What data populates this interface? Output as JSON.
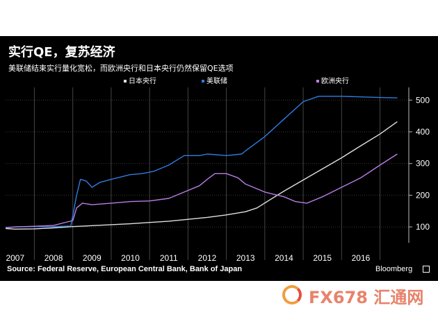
{
  "title": "实行QE，复苏经济",
  "subtitle": "美联储结束实行量化宽松，而欧洲央行和日本央行仍然保留QE选项",
  "source": "Source: Federal Reserve, European Central Bank, Bank of Japan",
  "brand": "Bloomberg",
  "watermark": "FX678 汇通网",
  "colors": {
    "background": "#000000",
    "boj": "#e0e0e0",
    "fed": "#2f7de0",
    "ecb": "#b97fe6"
  },
  "chart_data": {
    "type": "line",
    "x_ticks": [
      "2007",
      "2008",
      "2009",
      "2010",
      "2011",
      "2012",
      "2013",
      "2014",
      "2015",
      "2016"
    ],
    "y_ticks": [
      100,
      200,
      300,
      400,
      500
    ],
    "ylim": [
      50,
      540
    ],
    "xlim": [
      2006.75,
      2017.25
    ],
    "grid": true,
    "legend_position": "top",
    "series": [
      {
        "name": "日本央行",
        "color": "#e0e0e0",
        "points": [
          [
            2006.75,
            95
          ],
          [
            2007.0,
            93
          ],
          [
            2007.5,
            94
          ],
          [
            2008.0,
            97
          ],
          [
            2008.5,
            101
          ],
          [
            2009.0,
            104
          ],
          [
            2009.5,
            107
          ],
          [
            2010.0,
            110
          ],
          [
            2010.5,
            114
          ],
          [
            2011.0,
            118
          ],
          [
            2011.5,
            124
          ],
          [
            2012.0,
            130
          ],
          [
            2012.5,
            138
          ],
          [
            2013.0,
            148
          ],
          [
            2013.3,
            160
          ],
          [
            2013.6,
            183
          ],
          [
            2014.0,
            213
          ],
          [
            2014.5,
            248
          ],
          [
            2015.0,
            283
          ],
          [
            2015.5,
            318
          ],
          [
            2016.0,
            356
          ],
          [
            2016.5,
            393
          ],
          [
            2016.95,
            432
          ]
        ]
      },
      {
        "name": "美联储",
        "color": "#2f7de0",
        "points": [
          [
            2006.75,
            98
          ],
          [
            2007.0,
            100
          ],
          [
            2007.5,
            101
          ],
          [
            2008.0,
            101
          ],
          [
            2008.45,
            103
          ],
          [
            2008.6,
            200
          ],
          [
            2008.7,
            250
          ],
          [
            2008.85,
            245
          ],
          [
            2009.0,
            225
          ],
          [
            2009.2,
            240
          ],
          [
            2009.5,
            250
          ],
          [
            2010.0,
            265
          ],
          [
            2010.3,
            268
          ],
          [
            2010.6,
            275
          ],
          [
            2011.0,
            295
          ],
          [
            2011.4,
            325
          ],
          [
            2011.8,
            325
          ],
          [
            2012.0,
            330
          ],
          [
            2012.5,
            325
          ],
          [
            2012.9,
            330
          ],
          [
            2013.0,
            340
          ],
          [
            2013.5,
            385
          ],
          [
            2014.0,
            440
          ],
          [
            2014.5,
            495
          ],
          [
            2014.9,
            512
          ],
          [
            2015.5,
            512
          ],
          [
            2016.0,
            510
          ],
          [
            2016.5,
            508
          ],
          [
            2016.95,
            507
          ]
        ]
      },
      {
        "name": "欧洲央行",
        "color": "#b97fe6",
        "points": [
          [
            2006.75,
            97
          ],
          [
            2007.0,
            100
          ],
          [
            2007.5,
            102
          ],
          [
            2008.0,
            105
          ],
          [
            2008.5,
            120
          ],
          [
            2008.6,
            160
          ],
          [
            2008.75,
            175
          ],
          [
            2009.0,
            170
          ],
          [
            2009.5,
            175
          ],
          [
            2010.0,
            180
          ],
          [
            2010.5,
            182
          ],
          [
            2011.0,
            190
          ],
          [
            2011.4,
            210
          ],
          [
            2011.8,
            230
          ],
          [
            2012.0,
            250
          ],
          [
            2012.2,
            268
          ],
          [
            2012.5,
            268
          ],
          [
            2012.8,
            255
          ],
          [
            2013.0,
            235
          ],
          [
            2013.5,
            210
          ],
          [
            2014.0,
            195
          ],
          [
            2014.3,
            180
          ],
          [
            2014.6,
            175
          ],
          [
            2015.0,
            195
          ],
          [
            2015.5,
            225
          ],
          [
            2016.0,
            255
          ],
          [
            2016.5,
            295
          ],
          [
            2016.95,
            330
          ]
        ]
      }
    ]
  }
}
